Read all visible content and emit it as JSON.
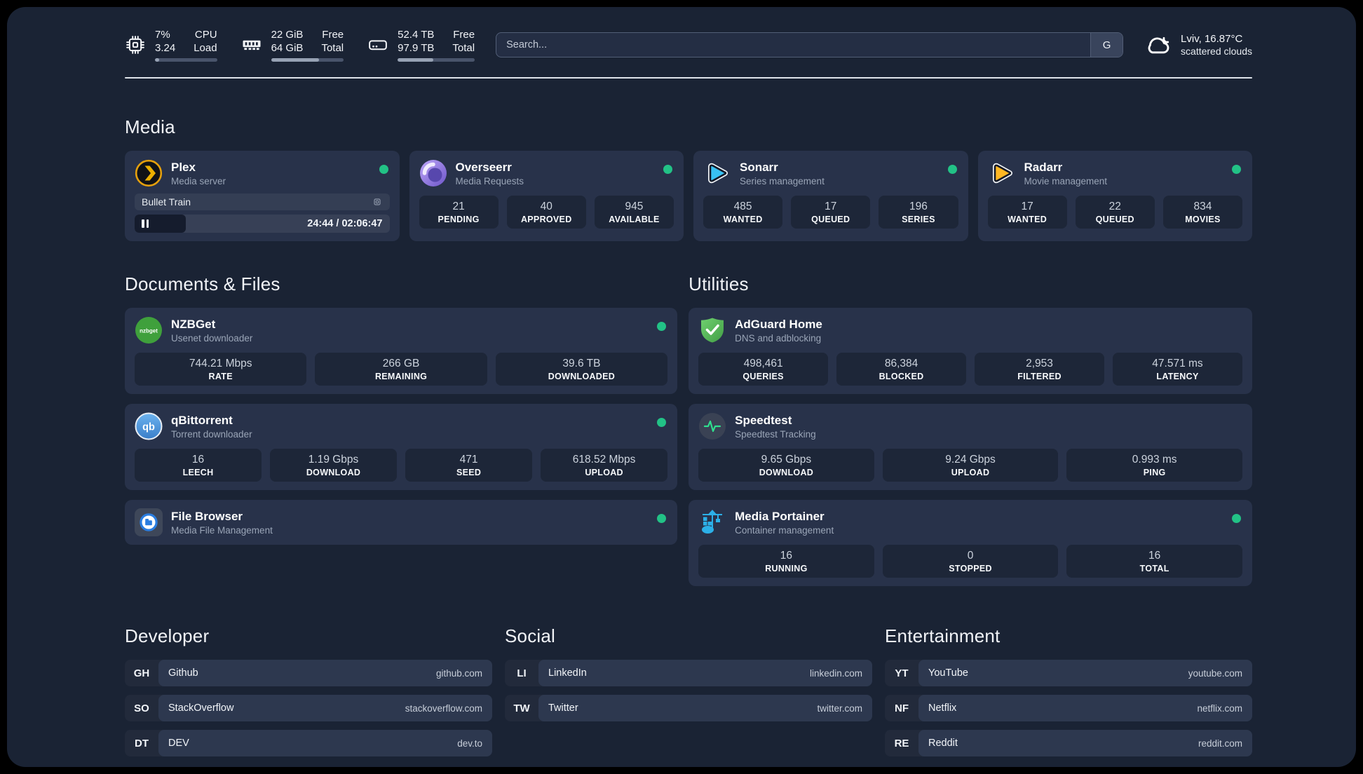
{
  "colors": {
    "status_online": "#22c286",
    "accent_plex": "#e5a00d",
    "accent_sonarr": "#38c1f2",
    "accent_radarr": "#ffb723",
    "accent_green": "#2fe08e",
    "accent_portainer": "#2cb0e8"
  },
  "header": {
    "system_stats": [
      {
        "icon": "cpu-icon",
        "value_top": "7%",
        "value_bottom": "3.24",
        "label_top": "CPU",
        "label_bottom": "Load",
        "progress_pct": 7
      },
      {
        "icon": "memory-icon",
        "value_top": "22 GiB",
        "value_bottom": "64 GiB",
        "label_top": "Free",
        "label_bottom": "Total",
        "progress_pct": 66
      },
      {
        "icon": "disk-icon",
        "value_top": "52.4 TB",
        "value_bottom": "97.9 TB",
        "label_top": "Free",
        "label_bottom": "Total",
        "progress_pct": 46
      }
    ],
    "search": {
      "placeholder": "Search...",
      "value": "",
      "engine_label": "G"
    },
    "weather": {
      "icon": "cloud-icon",
      "location_temp": "Lviv, 16.87°C",
      "condition": "scattered clouds"
    }
  },
  "sections": {
    "media": {
      "title": "Media",
      "apps": [
        {
          "icon": "plex-icon",
          "name": "Plex",
          "subtitle": "Media server",
          "online": true,
          "now_playing": {
            "title": "Bullet Train",
            "time_display": "24:44 / 02:06:47",
            "progress_pct": 20
          }
        },
        {
          "icon": "overseerr-icon",
          "name": "Overseerr",
          "subtitle": "Media Requests",
          "online": true,
          "stats": [
            {
              "value": "21",
              "label": "PENDING"
            },
            {
              "value": "40",
              "label": "APPROVED"
            },
            {
              "value": "945",
              "label": "AVAILABLE"
            }
          ]
        },
        {
          "icon": "sonarr-icon",
          "name": "Sonarr",
          "subtitle": "Series management",
          "online": true,
          "stats": [
            {
              "value": "485",
              "label": "WANTED"
            },
            {
              "value": "17",
              "label": "QUEUED"
            },
            {
              "value": "196",
              "label": "SERIES"
            }
          ]
        },
        {
          "icon": "radarr-icon",
          "name": "Radarr",
          "subtitle": "Movie management",
          "online": true,
          "stats": [
            {
              "value": "17",
              "label": "WANTED"
            },
            {
              "value": "22",
              "label": "QUEUED"
            },
            {
              "value": "834",
              "label": "MOVIES"
            }
          ]
        }
      ]
    },
    "documents": {
      "title": "Documents & Files",
      "apps": [
        {
          "icon": "nzbget-icon",
          "icon_text": "nzbget",
          "name": "NZBGet",
          "subtitle": "Usenet downloader",
          "online": true,
          "stats": [
            {
              "value": "744.21 Mbps",
              "label": "RATE"
            },
            {
              "value": "266 GB",
              "label": "REMAINING"
            },
            {
              "value": "39.6 TB",
              "label": "DOWNLOADED"
            }
          ]
        },
        {
          "icon": "qbittorrent-icon",
          "icon_text": "qb",
          "name": "qBittorrent",
          "subtitle": "Torrent downloader",
          "online": true,
          "stats": [
            {
              "value": "16",
              "label": "LEECH"
            },
            {
              "value": "1.19 Gbps",
              "label": "DOWNLOAD"
            },
            {
              "value": "471",
              "label": "SEED"
            },
            {
              "value": "618.52 Mbps",
              "label": "UPLOAD"
            }
          ]
        },
        {
          "icon": "filebrowser-icon",
          "name": "File Browser",
          "subtitle": "Media File Management",
          "online": true,
          "stats": []
        }
      ]
    },
    "utilities": {
      "title": "Utilities",
      "apps": [
        {
          "icon": "adguard-icon",
          "name": "AdGuard Home",
          "subtitle": "DNS and adblocking",
          "online": false,
          "stats": [
            {
              "value": "498,461",
              "label": "QUERIES"
            },
            {
              "value": "86,384",
              "label": "BLOCKED"
            },
            {
              "value": "2,953",
              "label": "FILTERED"
            },
            {
              "value": "47.571 ms",
              "label": "LATENCY"
            }
          ]
        },
        {
          "icon": "speedtest-icon",
          "name": "Speedtest",
          "subtitle": "Speedtest Tracking",
          "online": false,
          "stats": [
            {
              "value": "9.65 Gbps",
              "label": "DOWNLOAD"
            },
            {
              "value": "9.24 Gbps",
              "label": "UPLOAD"
            },
            {
              "value": "0.993 ms",
              "label": "PING"
            }
          ]
        },
        {
          "icon": "portainer-icon",
          "name": "Media Portainer",
          "subtitle": "Container management",
          "online": true,
          "stats": [
            {
              "value": "16",
              "label": "RUNNING"
            },
            {
              "value": "0",
              "label": "STOPPED"
            },
            {
              "value": "16",
              "label": "TOTAL"
            }
          ]
        }
      ]
    },
    "developer": {
      "title": "Developer",
      "links": [
        {
          "abbr": "GH",
          "label": "Github",
          "url": "github.com"
        },
        {
          "abbr": "SO",
          "label": "StackOverflow",
          "url": "stackoverflow.com"
        },
        {
          "abbr": "DT",
          "label": "DEV",
          "url": "dev.to"
        }
      ]
    },
    "social": {
      "title": "Social",
      "links": [
        {
          "abbr": "LI",
          "label": "LinkedIn",
          "url": "linkedin.com"
        },
        {
          "abbr": "TW",
          "label": "Twitter",
          "url": "twitter.com"
        }
      ]
    },
    "entertainment": {
      "title": "Entertainment",
      "links": [
        {
          "abbr": "YT",
          "label": "YouTube",
          "url": "youtube.com"
        },
        {
          "abbr": "NF",
          "label": "Netflix",
          "url": "netflix.com"
        },
        {
          "abbr": "RE",
          "label": "Reddit",
          "url": "reddit.com"
        }
      ]
    }
  }
}
